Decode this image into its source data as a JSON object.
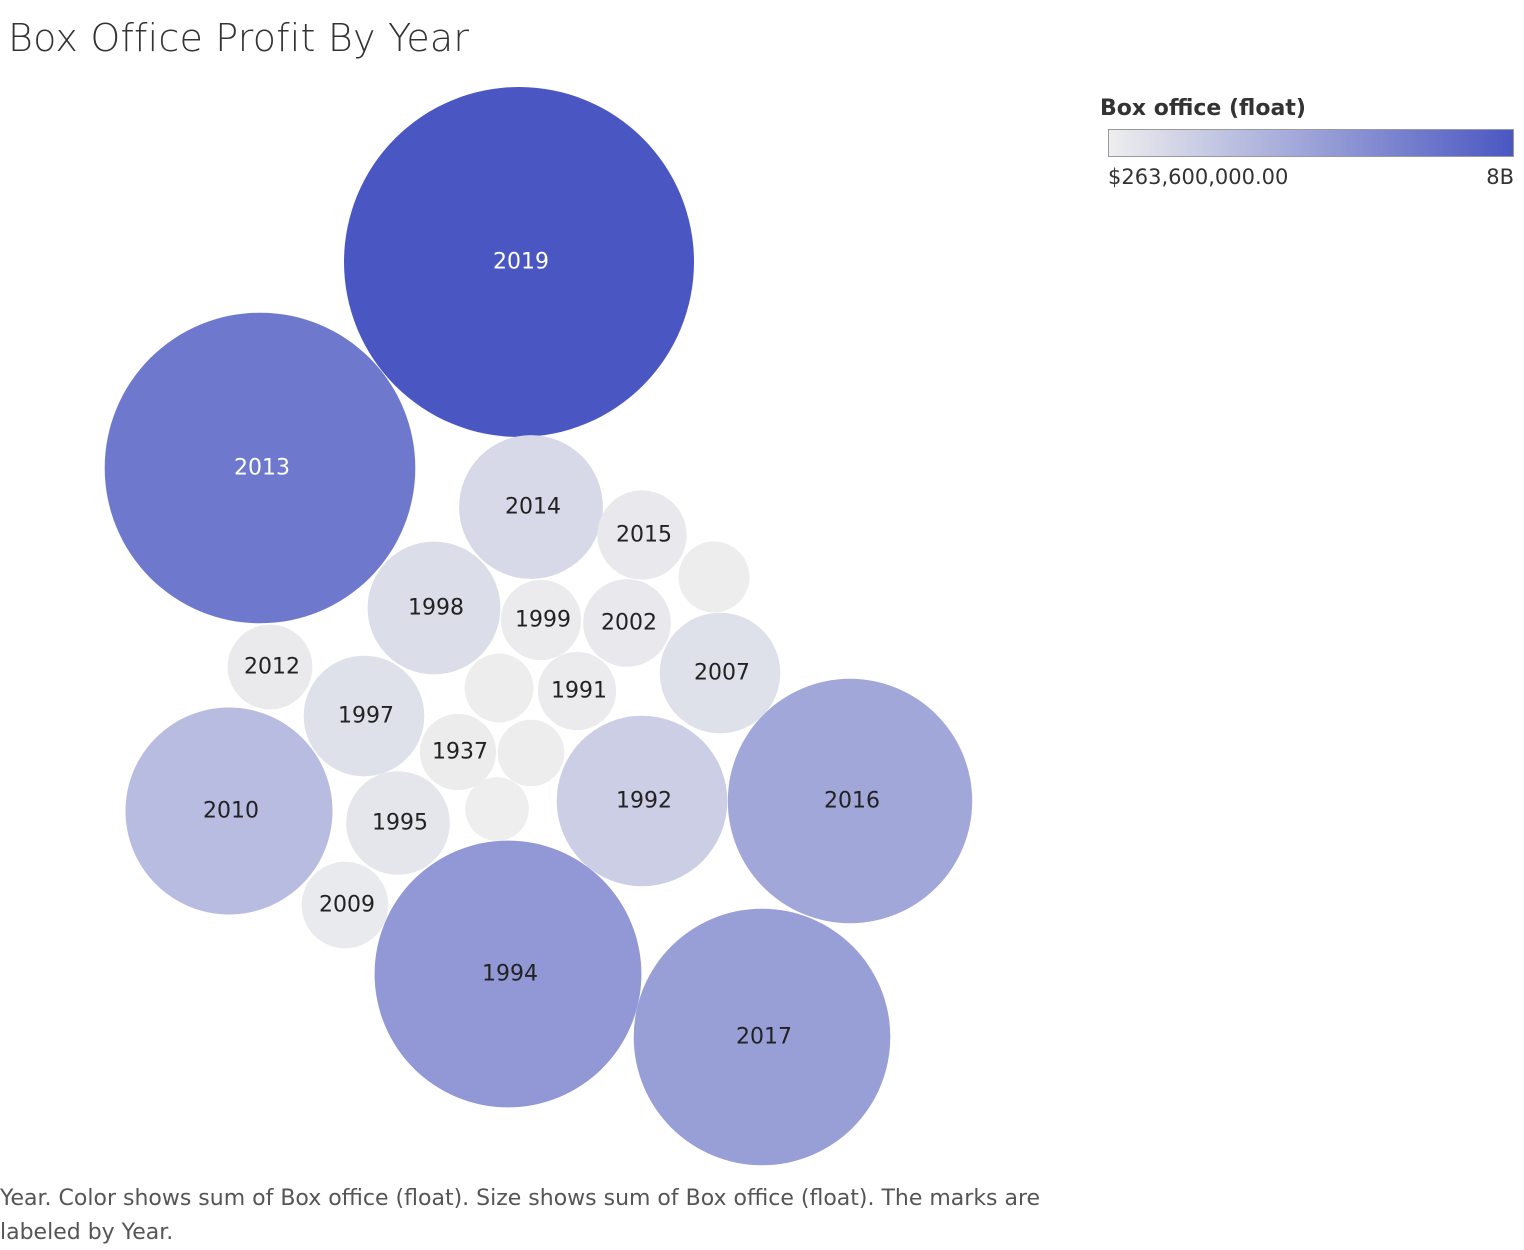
{
  "chart_data": {
    "type": "bubble",
    "title": "Box Office Profit By Year",
    "legend": {
      "title": "Box office (float)",
      "min_label": "$263,600,000.00",
      "max_label": "8B",
      "min_color": "#eeeeee",
      "max_color": "#4a57c2"
    },
    "caption": "Year.  Color shows sum of Box office (float).  Size shows sum of Box office (float).  The marks are labeled by Year.",
    "bubbles": [
      {
        "year": "2019",
        "label": "2019",
        "value": 8000000000
      },
      {
        "year": "2013",
        "label": "2013",
        "value": 6300000000
      },
      {
        "year": "2017",
        "label": "2017",
        "value": 4300000000
      },
      {
        "year": "1994",
        "label": "1994",
        "value": 4650000000
      },
      {
        "year": "2016",
        "label": "2016",
        "value": 3900000000
      },
      {
        "year": "2010",
        "label": "2010",
        "value": 2800000000
      },
      {
        "year": "1992",
        "label": "1992",
        "value": 1900000000
      },
      {
        "year": "2014",
        "label": "2014",
        "value": 1350000000
      },
      {
        "year": "1998",
        "label": "1998",
        "value": 1150000000
      },
      {
        "year": "2007",
        "label": "2007",
        "value": 950000000
      },
      {
        "year": "1997",
        "label": "1997",
        "value": 950000000
      },
      {
        "year": "1995",
        "label": "1995",
        "value": 700000000
      },
      {
        "year": "2015",
        "label": "2015",
        "value": 520000000
      },
      {
        "year": "2002",
        "label": "2002",
        "value": 500000000
      },
      {
        "year": "2009",
        "label": "2009",
        "value": 490000000
      },
      {
        "year": "2012",
        "label": "2012",
        "value": 470000000
      },
      {
        "year": "1999",
        "label": "1999",
        "value": 420000000
      },
      {
        "year": "1991",
        "label": "1991",
        "value": 400000000
      },
      {
        "year": "1937",
        "label": "1937",
        "value": 380000000
      },
      {
        "year": "",
        "label": "",
        "value": 330000000
      },
      {
        "year": "",
        "label": "",
        "value": 310000000
      },
      {
        "year": "",
        "label": "",
        "value": 290000000
      },
      {
        "year": "",
        "label": "",
        "value": 263600000
      }
    ]
  }
}
